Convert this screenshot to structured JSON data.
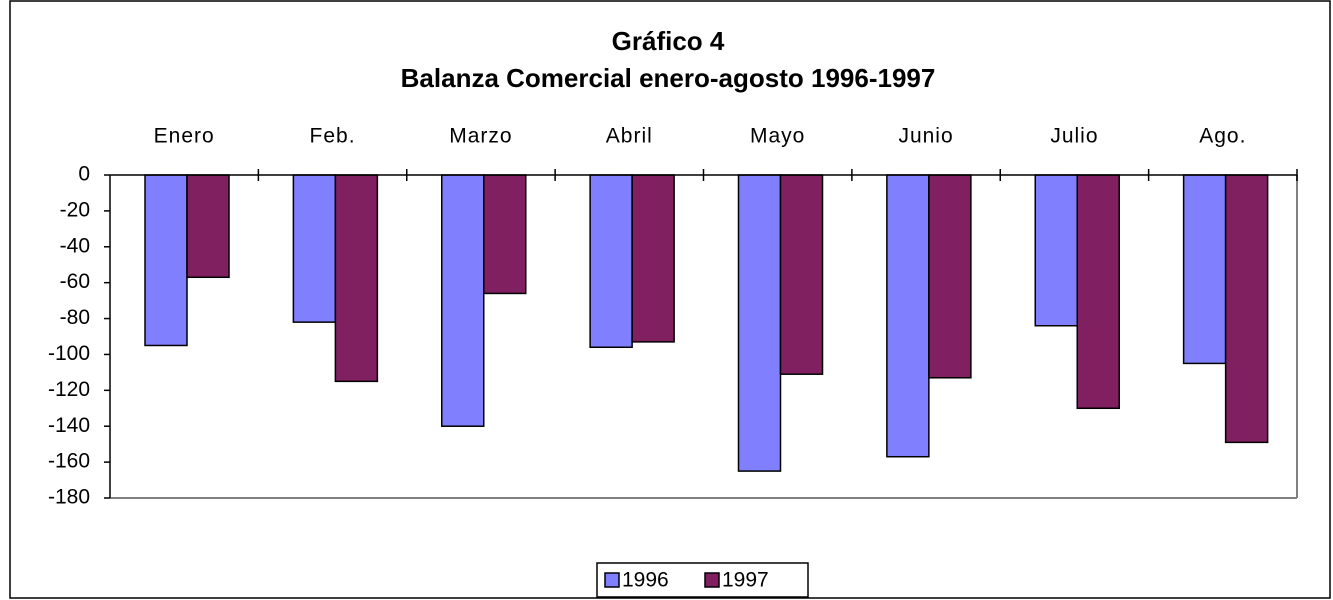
{
  "chart_data": {
    "type": "bar",
    "title": "Gráfico 4",
    "subtitle": "Balanza Comercial enero-agosto  1996-1997",
    "categories": [
      "Enero",
      "Feb.",
      "Marzo",
      "Abril",
      "Mayo",
      "Junio",
      "Julio",
      "Ago."
    ],
    "series": [
      {
        "name": "1996",
        "color": "#8080ff",
        "values": [
          -95,
          -82,
          -140,
          -96,
          -165,
          -157,
          -84,
          -105
        ]
      },
      {
        "name": "1997",
        "color": "#802060",
        "values": [
          -57,
          -115,
          -66,
          -93,
          -111,
          -113,
          -130,
          -149
        ]
      }
    ],
    "ylim": [
      -180,
      0
    ],
    "yticks": [
      0,
      -20,
      -40,
      -60,
      -80,
      -100,
      -120,
      -140,
      -160,
      -180
    ],
    "legend": "bottom"
  }
}
